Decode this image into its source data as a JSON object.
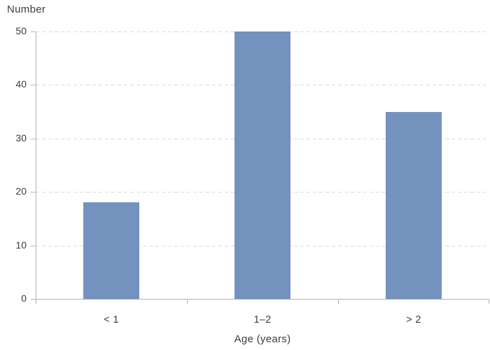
{
  "chart_data": {
    "type": "bar",
    "title": "Number",
    "xlabel": "Age (years)",
    "ylabel": "Number",
    "categories": [
      "< 1",
      "1–2",
      "> 2"
    ],
    "values": [
      18,
      50,
      35
    ],
    "yticks": [
      0,
      10,
      20,
      30,
      40,
      50
    ],
    "ylim": [
      0,
      50
    ],
    "grid": "horizontal-dashed-gridlines",
    "legend": "none",
    "colors": {
      "bar": "#7492be",
      "axis": "#b3b3b3",
      "grid": "#d9d9d9",
      "text": "#3d3d3d",
      "background": "#ffffff"
    }
  }
}
